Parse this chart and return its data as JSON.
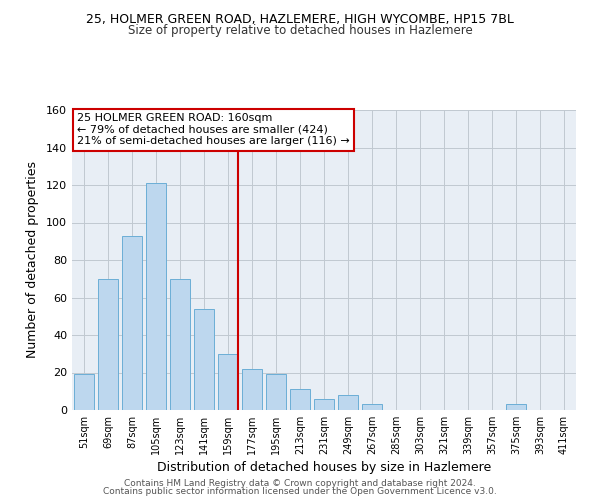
{
  "title_line1": "25, HOLMER GREEN ROAD, HAZLEMERE, HIGH WYCOMBE, HP15 7BL",
  "title_line2": "Size of property relative to detached houses in Hazlemere",
  "xlabel": "Distribution of detached houses by size in Hazlemere",
  "ylabel": "Number of detached properties",
  "categories": [
    "51sqm",
    "69sqm",
    "87sqm",
    "105sqm",
    "123sqm",
    "141sqm",
    "159sqm",
    "177sqm",
    "195sqm",
    "213sqm",
    "231sqm",
    "249sqm",
    "267sqm",
    "285sqm",
    "303sqm",
    "321sqm",
    "339sqm",
    "357sqm",
    "375sqm",
    "393sqm",
    "411sqm"
  ],
  "values": [
    19,
    70,
    93,
    121,
    70,
    54,
    30,
    22,
    19,
    11,
    6,
    8,
    3,
    0,
    0,
    0,
    0,
    0,
    3,
    0,
    0
  ],
  "bar_color": "#bdd7ee",
  "bar_edge_color": "#6baed6",
  "vline_index": 6,
  "vline_color": "#cc0000",
  "annotation_title": "25 HOLMER GREEN ROAD: 160sqm",
  "annotation_line1": "← 79% of detached houses are smaller (424)",
  "annotation_line2": "21% of semi-detached houses are larger (116) →",
  "annotation_box_facecolor": "#ffffff",
  "annotation_box_edgecolor": "#cc0000",
  "ylim": [
    0,
    160
  ],
  "yticks": [
    0,
    20,
    40,
    60,
    80,
    100,
    120,
    140,
    160
  ],
  "footer_line1": "Contains HM Land Registry data © Crown copyright and database right 2024.",
  "footer_line2": "Contains public sector information licensed under the Open Government Licence v3.0.",
  "background_color": "#ffffff",
  "axes_facecolor": "#e8eef5",
  "grid_color": "#c0c8d0"
}
